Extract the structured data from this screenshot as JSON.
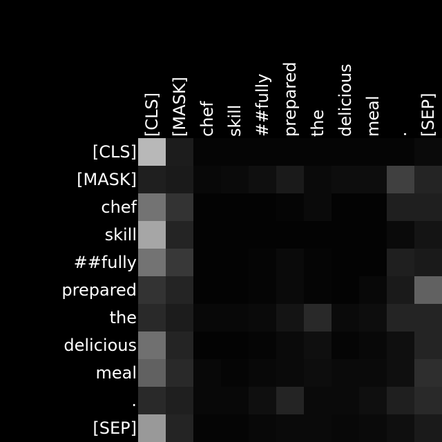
{
  "chart_data": {
    "type": "heatmap",
    "title": "",
    "xlabel": "",
    "ylabel": "",
    "x_labels": [
      "[CLS]",
      "[MASK]",
      "chef",
      "skill",
      "##fully",
      "prepared",
      "the",
      "delicious",
      "meal",
      ".",
      "[SEP]"
    ],
    "y_labels": [
      "[CLS]",
      "[MASK]",
      "chef",
      "skill",
      "##fully",
      "prepared",
      "the",
      "delicious",
      "meal",
      ".",
      "[SEP]"
    ],
    "colormap": "grayscale",
    "value_range": [
      0,
      1
    ],
    "values": [
      [
        0.72,
        0.11,
        0.02,
        0.02,
        0.02,
        0.02,
        0.02,
        0.02,
        0.02,
        0.02,
        0.04
      ],
      [
        0.12,
        0.1,
        0.03,
        0.04,
        0.06,
        0.1,
        0.04,
        0.05,
        0.05,
        0.25,
        0.14
      ],
      [
        0.45,
        0.2,
        0.01,
        0.01,
        0.01,
        0.02,
        0.04,
        0.01,
        0.01,
        0.12,
        0.12
      ],
      [
        0.65,
        0.14,
        0.01,
        0.01,
        0.01,
        0.01,
        0.01,
        0.01,
        0.01,
        0.04,
        0.08
      ],
      [
        0.45,
        0.22,
        0.01,
        0.01,
        0.02,
        0.04,
        0.02,
        0.01,
        0.01,
        0.12,
        0.1
      ],
      [
        0.2,
        0.14,
        0.01,
        0.01,
        0.02,
        0.04,
        0.02,
        0.01,
        0.03,
        0.1,
        0.38
      ],
      [
        0.16,
        0.11,
        0.03,
        0.03,
        0.04,
        0.08,
        0.16,
        0.04,
        0.05,
        0.14,
        0.14
      ],
      [
        0.44,
        0.14,
        0.01,
        0.01,
        0.02,
        0.04,
        0.06,
        0.02,
        0.03,
        0.06,
        0.14
      ],
      [
        0.38,
        0.16,
        0.03,
        0.02,
        0.03,
        0.04,
        0.05,
        0.04,
        0.04,
        0.06,
        0.18
      ],
      [
        0.16,
        0.12,
        0.03,
        0.03,
        0.06,
        0.14,
        0.04,
        0.04,
        0.06,
        0.12,
        0.16
      ],
      [
        0.6,
        0.14,
        0.02,
        0.02,
        0.03,
        0.04,
        0.04,
        0.03,
        0.04,
        0.06,
        0.1
      ]
    ]
  }
}
